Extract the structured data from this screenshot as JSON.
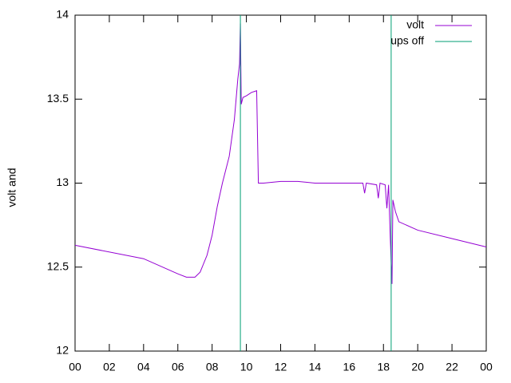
{
  "chart_data": {
    "type": "line",
    "y_label": "volt and",
    "x": [
      0,
      4,
      6,
      6.5,
      7,
      7.3,
      7.7,
      8,
      8.3,
      8.6,
      9,
      9.3,
      9.5,
      9.6,
      9.65,
      9.7,
      9.8,
      10,
      10.3,
      10.6,
      10.7,
      11,
      12,
      13,
      14,
      16,
      16.8,
      16.9,
      17,
      17.6,
      17.7,
      17.8,
      18.1,
      18.2,
      18.3,
      18.4,
      18.5,
      18.55,
      18.7,
      18.9,
      20,
      22,
      24
    ],
    "series": [
      {
        "name": "volt",
        "color": "#9400d3",
        "values": [
          12.63,
          12.55,
          12.46,
          12.44,
          12.44,
          12.47,
          12.57,
          12.69,
          12.86,
          13.0,
          13.16,
          13.38,
          13.62,
          13.71,
          13.95,
          13.47,
          13.51,
          13.52,
          13.54,
          13.55,
          13.0,
          13.0,
          13.01,
          13.01,
          13.0,
          13.0,
          13.0,
          12.94,
          13.0,
          12.99,
          12.91,
          13.0,
          12.99,
          12.85,
          12.99,
          12.67,
          12.4,
          12.9,
          12.83,
          12.77,
          12.72,
          12.67,
          12.62
        ]
      },
      {
        "name": "ups off",
        "color": "#009e73",
        "events": [
          9.65,
          18.45
        ]
      }
    ],
    "xlim": [
      0,
      24
    ],
    "xticks": [
      {
        "value": 0,
        "label": "00"
      },
      {
        "value": 2,
        "label": "02"
      },
      {
        "value": 4,
        "label": "04"
      },
      {
        "value": 6,
        "label": "06"
      },
      {
        "value": 8,
        "label": "08"
      },
      10,
      12,
      14,
      16,
      18,
      20,
      22,
      {
        "value": 24,
        "label": "00"
      }
    ],
    "ylim": [
      12,
      14
    ],
    "yticks": [
      12,
      12.5,
      13,
      13.5,
      14
    ],
    "legend": "top-right"
  }
}
